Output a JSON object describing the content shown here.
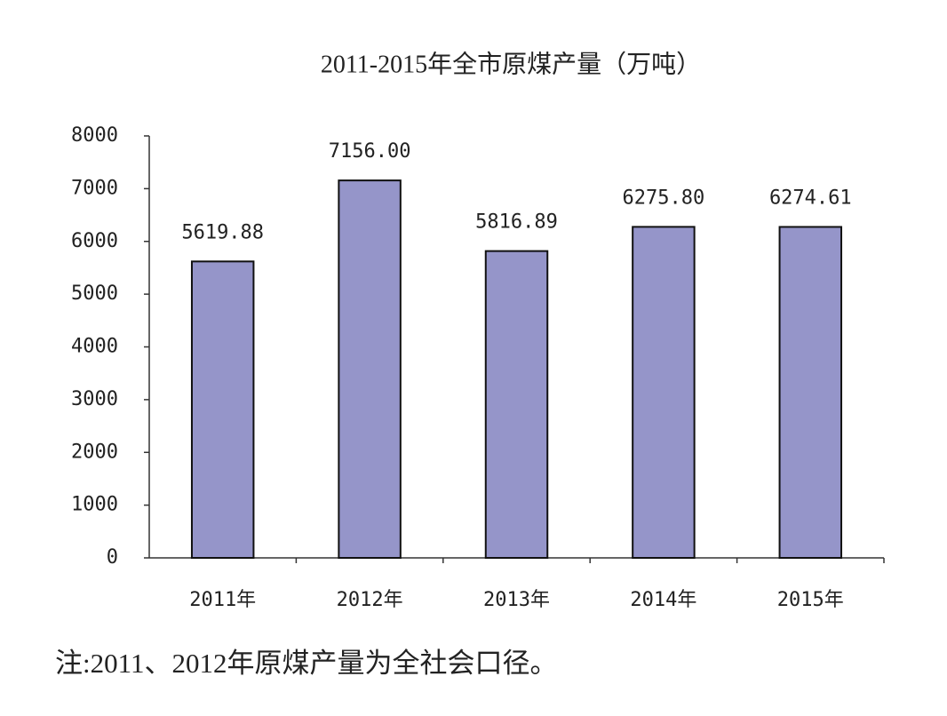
{
  "chart_data": {
    "type": "bar",
    "title": "2011-2015年全市原煤产量（万吨）",
    "categories": [
      "2011年",
      "2012年",
      "2013年",
      "2014年",
      "2015年"
    ],
    "values": [
      5619.88,
      7156,
      5816.89,
      6275.8,
      6274.61
    ],
    "value_labels": [
      "5619.88",
      "7156.00",
      "5816.89",
      "6275.80",
      "6274.61"
    ],
    "color": "#9595c9",
    "ylim": [
      0,
      8000
    ],
    "yticks": [
      0,
      1000,
      2000,
      3000,
      4000,
      5000,
      6000,
      7000,
      8000
    ],
    "grid": false,
    "note": "注:2011、2012年原煤产量为全社会口径。"
  }
}
